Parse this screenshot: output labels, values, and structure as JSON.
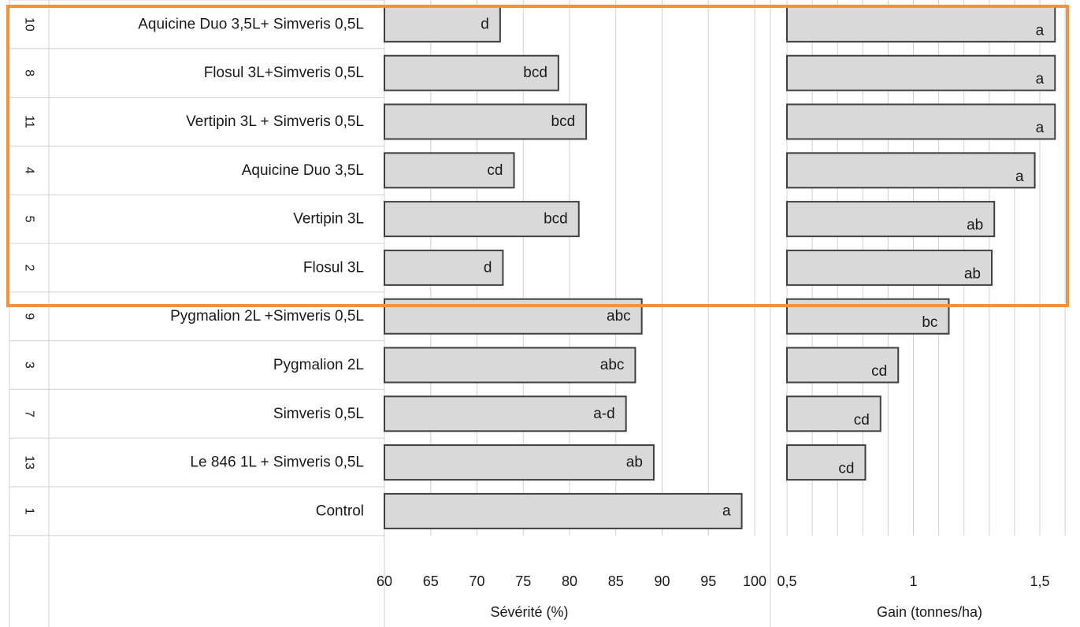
{
  "chart_data": [
    {
      "type": "bar",
      "orientation": "horizontal",
      "categories": [
        {
          "id": "10",
          "label": "Aquicine Duo 3,5L+ Simveris 0,5L"
        },
        {
          "id": "8",
          "label": "Flosul 3L+Simveris 0,5L"
        },
        {
          "id": "11",
          "label": "Vertipin 3L + Simveris 0,5L"
        },
        {
          "id": "4",
          "label": "Aquicine Duo 3,5L"
        },
        {
          "id": "5",
          "label": "Vertipin 3L"
        },
        {
          "id": "2",
          "label": "Flosul 3L"
        },
        {
          "id": "9",
          "label": "Pygmalion 2L +Simveris 0,5L"
        },
        {
          "id": "3",
          "label": "Pygmalion 2L"
        },
        {
          "id": "7",
          "label": "Simveris 0,5L"
        },
        {
          "id": "13",
          "label": "Le 846 1L + Simveris 0,5L"
        },
        {
          "id": "1",
          "label": "Control"
        }
      ],
      "values": [
        72.5,
        78.8,
        81.8,
        74,
        81,
        72.8,
        87.8,
        87.1,
        86.1,
        89.1,
        98.6
      ],
      "bar_labels": [
        "d",
        "bcd",
        "bcd",
        "cd",
        "bcd",
        "d",
        "abc",
        "abc",
        "a-d",
        "ab",
        "a"
      ],
      "xlabel": "Sévérité (%)",
      "xlim": [
        60,
        100
      ],
      "xticks": [
        "60",
        "65",
        "70",
        "75",
        "80",
        "85",
        "90",
        "95",
        "100"
      ],
      "grid": true
    },
    {
      "type": "bar",
      "orientation": "horizontal",
      "values": [
        1.56,
        1.56,
        1.56,
        1.48,
        1.32,
        1.31,
        1.14,
        0.94,
        0.87,
        0.81,
        null
      ],
      "bar_labels": [
        "a",
        "a",
        "a",
        "a",
        "ab",
        "ab",
        "bc",
        "cd",
        "cd",
        "cd",
        ""
      ],
      "xlabel": "Gain (tonnes/ha)",
      "xlim": [
        0.5,
        1.65
      ],
      "xticks": [
        "0,5",
        "1",
        "1,5"
      ],
      "grid": true
    }
  ],
  "highlight": {
    "color": "#ee9343",
    "covers": "top 6 treatments"
  },
  "colors": {
    "bar_fill": "#d9d9d9",
    "bar_stroke": "#404040",
    "grid": "#d0d0d0"
  }
}
